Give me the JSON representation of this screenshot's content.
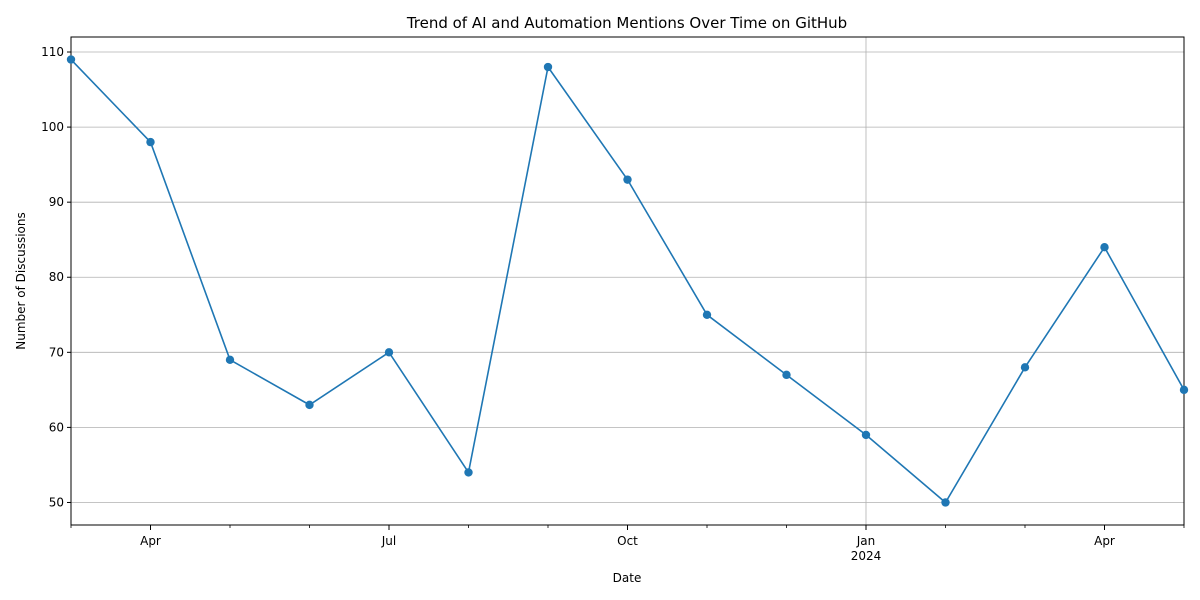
{
  "chart_data": {
    "type": "line",
    "title": "Trend of AI and Automation Mentions Over Time on GitHub",
    "xlabel": "Date",
    "ylabel": "Number of Discussions",
    "x": [
      "2023-03",
      "2023-04",
      "2023-05",
      "2023-06",
      "2023-07",
      "2023-08",
      "2023-09",
      "2023-10",
      "2023-11",
      "2023-12",
      "2024-01",
      "2024-02",
      "2024-03",
      "2024-04",
      "2024-05"
    ],
    "series": [
      {
        "values": [
          109,
          98,
          69,
          63,
          70,
          54,
          108,
          93,
          75,
          67,
          59,
          50,
          68,
          84,
          65
        ],
        "color": "#1f77b4",
        "marker": "circle"
      }
    ],
    "ylim": [
      47,
      112
    ],
    "yticks": [
      50,
      60,
      70,
      80,
      90,
      100,
      110
    ],
    "xticks": [
      {
        "month": "2023-04",
        "label": "Apr",
        "sublabel": ""
      },
      {
        "month": "2023-07",
        "label": "Jul",
        "sublabel": ""
      },
      {
        "month": "2023-10",
        "label": "Oct",
        "sublabel": ""
      },
      {
        "month": "2024-01",
        "label": "Jan",
        "sublabel": "2024"
      },
      {
        "month": "2024-04",
        "label": "Apr",
        "sublabel": ""
      }
    ],
    "grid": true
  }
}
